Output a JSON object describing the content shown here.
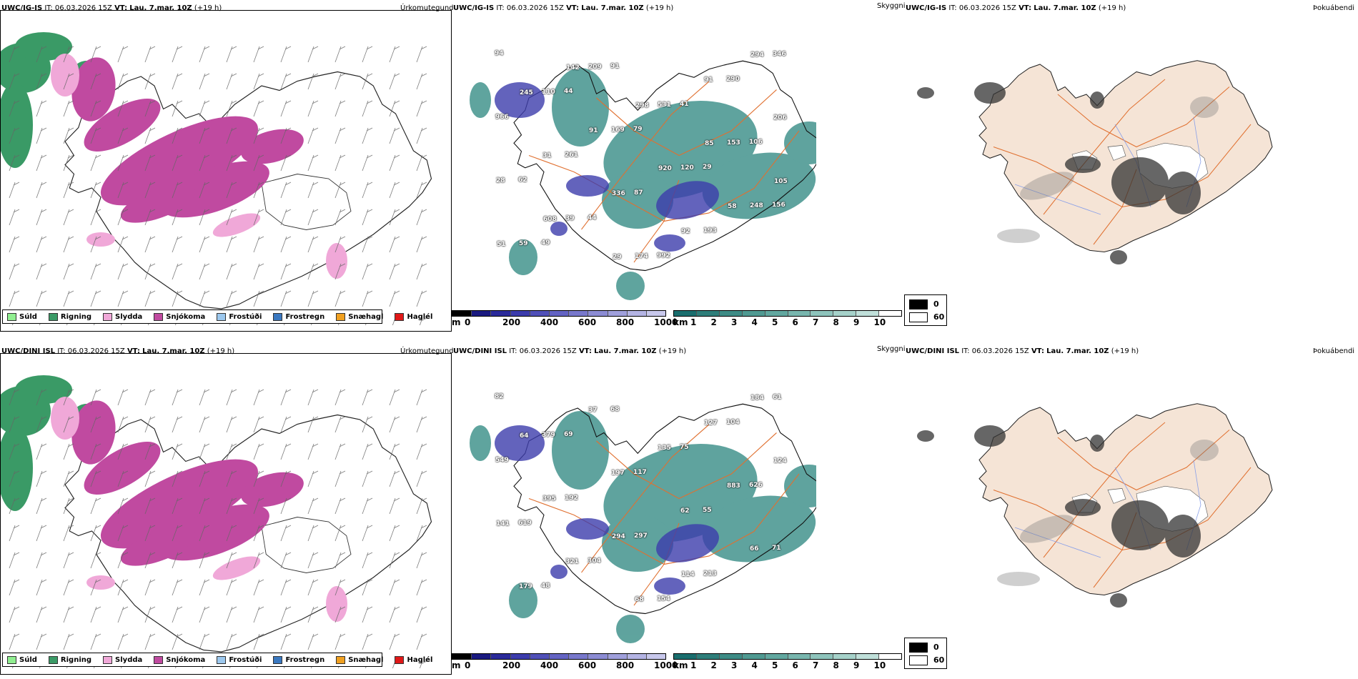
{
  "panels": [
    {
      "model": "UWC/IG-IS",
      "it_label": "IT:",
      "it_value": "06.03.2026 15Z",
      "vt_label": "VT:",
      "vt_value": "Lau. 7.mar. 10Z",
      "lead": "(+19 h)",
      "precip_title": "Úrkomutegund",
      "cloud_title": "Skyggni",
      "fog_title": "Þokuábendi",
      "cloud_numbers": [
        "94",
        "44",
        "79",
        "29",
        "156",
        "49",
        "91",
        "41",
        "106",
        "62",
        "44",
        "992",
        "290",
        "966",
        "261",
        "87",
        "193",
        "346",
        "110",
        "169",
        "120",
        "248",
        "59",
        "209",
        "531",
        "153",
        "28",
        "39",
        "174",
        "91",
        "206",
        "31",
        "336",
        "92",
        "294",
        "245",
        "91",
        "920",
        "58",
        "51",
        "142",
        "298",
        "85",
        "105",
        "608",
        "29"
      ]
    },
    {
      "model": "UWC/DINI ISL",
      "it_label": "IT:",
      "it_value": "06.03.2026 15Z",
      "vt_label": "VT:",
      "vt_value": "Lau. 7.mar. 10Z",
      "lead": "(+19 h)",
      "precip_title": "Úrkomutegund",
      "cloud_title": "Skyggni",
      "fog_title": "Þokuábendi",
      "cloud_numbers": [
        "82",
        "69",
        "117",
        "55",
        "71",
        "48",
        "68",
        "75",
        "626",
        "619",
        "304",
        "154",
        "104",
        "549",
        "192",
        "297",
        "213",
        "61",
        "379",
        "197",
        "62",
        "66",
        "179",
        "37",
        "135",
        "883",
        "141",
        "321",
        "68",
        "127",
        "124",
        "395",
        "294",
        "114",
        "184",
        "64"
      ]
    }
  ],
  "precip_legend": [
    {
      "label": "Súld",
      "color": "#90ee90"
    },
    {
      "label": "Rigning",
      "color": "#3a9a66"
    },
    {
      "label": "Slydda",
      "color": "#f0a8d8"
    },
    {
      "label": "Snjókoma",
      "color": "#c04aa0"
    },
    {
      "label": "Frostúði",
      "color": "#9cc8ee"
    },
    {
      "label": "Frostregn",
      "color": "#3a78c0"
    },
    {
      "label": "Snæhagl",
      "color": "#f0a020"
    },
    {
      "label": "Haglél",
      "color": "#e01818"
    }
  ],
  "height_colorbar": {
    "unit": "m",
    "ticks": [
      "0",
      "200",
      "400",
      "600",
      "800",
      "1000"
    ],
    "colors": [
      "#000000",
      "#1a1a80",
      "#2a2a9a",
      "#3c3cac",
      "#5050b8",
      "#6464c4",
      "#7878cc",
      "#8c8cd4",
      "#a0a0dc",
      "#b4b4e4",
      "#c8c8ec"
    ]
  },
  "vis_colorbar": {
    "unit": "km",
    "ticks": [
      "1",
      "2",
      "3",
      "4",
      "5",
      "6",
      "7",
      "8",
      "9",
      "10"
    ],
    "colors": [
      "#1a6e6e",
      "#2e7e7a",
      "#3e8c86",
      "#509a92",
      "#62a8a0",
      "#78b6ae",
      "#8ec4bc",
      "#a6d2ca",
      "#c0e0da",
      "#ffffff"
    ]
  },
  "fog_legend": [
    {
      "label": "0",
      "color": "#000000"
    },
    {
      "label": "60",
      "color": "#ffffff"
    }
  ],
  "colors": {
    "rain": "#3a9a66",
    "snow": "#c04aa0",
    "sleet": "#f0a8d8",
    "cloud": "#4e9a94",
    "roads": "#e07030",
    "land": "#f5e4d6",
    "rivers": "#8aa0e8"
  }
}
